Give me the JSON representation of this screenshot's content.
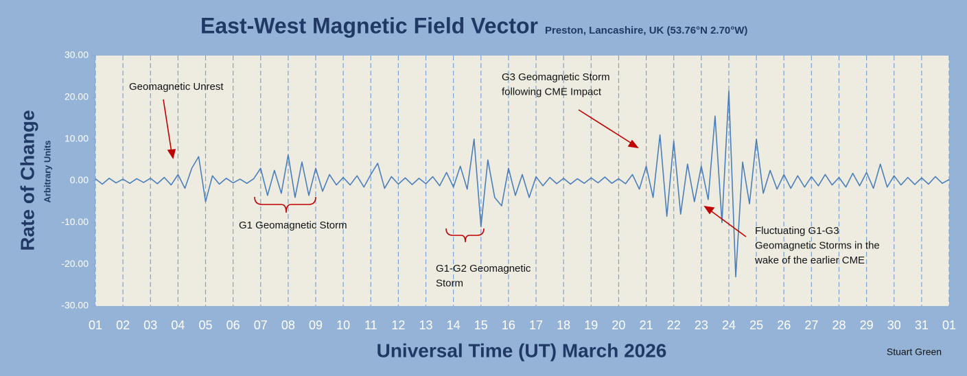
{
  "chart_data": {
    "type": "line",
    "title": "East-West Magnetic Field Vector",
    "subtitle": "Preston, Lancashire, UK  (53.76°N 2.70°W)",
    "ylabel": "Rate of Change",
    "ylabel_sub": "Arbitrary Units",
    "xlabel": "Universal Time (UT) March 2026",
    "credit": "Stuart Green",
    "grid": "x",
    "xlim": [
      0,
      31
    ],
    "xticks": [
      {
        "value": 0,
        "label": "01"
      },
      {
        "value": 1,
        "label": "02"
      },
      {
        "value": 2,
        "label": "03"
      },
      {
        "value": 3,
        "label": "04"
      },
      {
        "value": 4,
        "label": "05"
      },
      {
        "value": 5,
        "label": "06"
      },
      {
        "value": 6,
        "label": "07"
      },
      {
        "value": 7,
        "label": "08"
      },
      {
        "value": 8,
        "label": "09"
      },
      {
        "value": 9,
        "label": "10"
      },
      {
        "value": 10,
        "label": "11"
      },
      {
        "value": 11,
        "label": "12"
      },
      {
        "value": 12,
        "label": "13"
      },
      {
        "value": 13,
        "label": "14"
      },
      {
        "value": 14,
        "label": "15"
      },
      {
        "value": 15,
        "label": "16"
      },
      {
        "value": 16,
        "label": "17"
      },
      {
        "value": 17,
        "label": "18"
      },
      {
        "value": 18,
        "label": "19"
      },
      {
        "value": 19,
        "label": "20"
      },
      {
        "value": 20,
        "label": "21"
      },
      {
        "value": 21,
        "label": "22"
      },
      {
        "value": 22,
        "label": "23"
      },
      {
        "value": 23,
        "label": "24"
      },
      {
        "value": 24,
        "label": "25"
      },
      {
        "value": 25,
        "label": "26"
      },
      {
        "value": 26,
        "label": "27"
      },
      {
        "value": 27,
        "label": "28"
      },
      {
        "value": 28,
        "label": "29"
      },
      {
        "value": 29,
        "label": "30"
      },
      {
        "value": 30,
        "label": "31"
      },
      {
        "value": 31,
        "label": "01"
      }
    ],
    "ylim": [
      -30,
      30
    ],
    "yticks": [
      {
        "value": 30,
        "label": "30.00"
      },
      {
        "value": 20,
        "label": "20.00"
      },
      {
        "value": 10,
        "label": "10.00"
      },
      {
        "value": 0,
        "label": "0.00"
      },
      {
        "value": -10,
        "label": "-10.00"
      },
      {
        "value": -20,
        "label": "-20.00"
      },
      {
        "value": -30,
        "label": "-30.00"
      }
    ],
    "x": [
      0,
      0.25,
      0.5,
      0.75,
      1,
      1.25,
      1.5,
      1.75,
      2,
      2.25,
      2.5,
      2.75,
      3,
      3.25,
      3.5,
      3.75,
      4,
      4.25,
      4.5,
      4.75,
      5,
      5.25,
      5.5,
      5.75,
      6,
      6.25,
      6.5,
      6.75,
      7,
      7.25,
      7.5,
      7.75,
      8,
      8.25,
      8.5,
      8.75,
      9,
      9.25,
      9.5,
      9.75,
      10,
      10.25,
      10.5,
      10.75,
      11,
      11.25,
      11.5,
      11.75,
      12,
      12.25,
      12.5,
      12.75,
      13,
      13.25,
      13.5,
      13.75,
      14,
      14.25,
      14.5,
      14.75,
      15,
      15.25,
      15.5,
      15.75,
      16,
      16.25,
      16.5,
      16.75,
      17,
      17.25,
      17.5,
      17.75,
      18,
      18.25,
      18.5,
      18.75,
      19,
      19.25,
      19.5,
      19.75,
      20,
      20.25,
      20.5,
      20.75,
      21,
      21.25,
      21.5,
      21.75,
      22,
      22.25,
      22.5,
      22.75,
      23,
      23.25,
      23.5,
      23.75,
      24,
      24.25,
      24.5,
      24.75,
      25,
      25.25,
      25.5,
      25.75,
      26,
      26.25,
      26.5,
      26.75,
      27,
      27.25,
      27.5,
      27.75,
      28,
      28.25,
      28.5,
      28.75,
      29,
      29.25,
      29.5,
      29.75,
      30,
      30.25,
      30.5,
      30.75,
      31
    ],
    "series": [
      {
        "color": "#4a7ebb",
        "values": [
          0.5,
          -0.8,
          0.6,
          -0.5,
          0.4,
          -0.6,
          0.5,
          -0.4,
          0.6,
          -0.7,
          0.8,
          -1.0,
          1.5,
          -1.8,
          3.0,
          5.8,
          -5.0,
          1.2,
          -0.8,
          0.6,
          -0.5,
          0.4,
          -0.6,
          0.5,
          3.0,
          -3.5,
          2.5,
          -3.0,
          6.2,
          -4.0,
          4.5,
          -3.5,
          3.0,
          -2.5,
          1.5,
          -1.0,
          0.8,
          -1.0,
          1.2,
          -1.5,
          1.5,
          4.2,
          -1.8,
          1.0,
          -0.8,
          0.7,
          -0.9,
          0.6,
          -0.7,
          1.0,
          -1.2,
          2.0,
          -1.5,
          3.5,
          -2.0,
          10.0,
          -11.0,
          5.0,
          -4.0,
          -6.0,
          3.0,
          -3.5,
          1.5,
          -4.0,
          1.0,
          -1.2,
          0.8,
          -0.7,
          0.6,
          -0.8,
          0.5,
          -0.6,
          0.7,
          -0.5,
          0.9,
          -0.6,
          0.5,
          -0.7,
          1.5,
          -2.0,
          3.5,
          -4.0,
          11.0,
          -8.5,
          9.5,
          -8.0,
          4.0,
          -5.0,
          3.5,
          -4.5,
          15.5,
          -10.0,
          21.5,
          -23.0,
          4.5,
          -5.5,
          10.0,
          -3.0,
          2.5,
          -2.0,
          1.5,
          -1.8,
          1.2,
          -1.5,
          1.0,
          -1.2,
          1.5,
          -1.0,
          0.8,
          -1.5,
          1.8,
          -1.2,
          2.0,
          -1.8,
          4.0,
          -1.5,
          1.2,
          -1.0,
          0.8,
          -0.9,
          0.7,
          -0.8,
          1.0,
          -0.6,
          0.3
        ]
      }
    ],
    "annotations": [
      {
        "lines": [
          "Geomagnetic Unrest"
        ]
      },
      {
        "lines": [
          "G1 Geomagnetic Storm"
        ]
      },
      {
        "lines": [
          "G1-G2 Geomagnetic",
          "Storm"
        ]
      },
      {
        "lines": [
          "G3 Geomagnetic Storm",
          "following CME Impact"
        ]
      },
      {
        "lines": [
          "Fluctuating G1-G3",
          "Geomagnetic Storms in the",
          "wake of the earlier CME"
        ]
      }
    ]
  }
}
